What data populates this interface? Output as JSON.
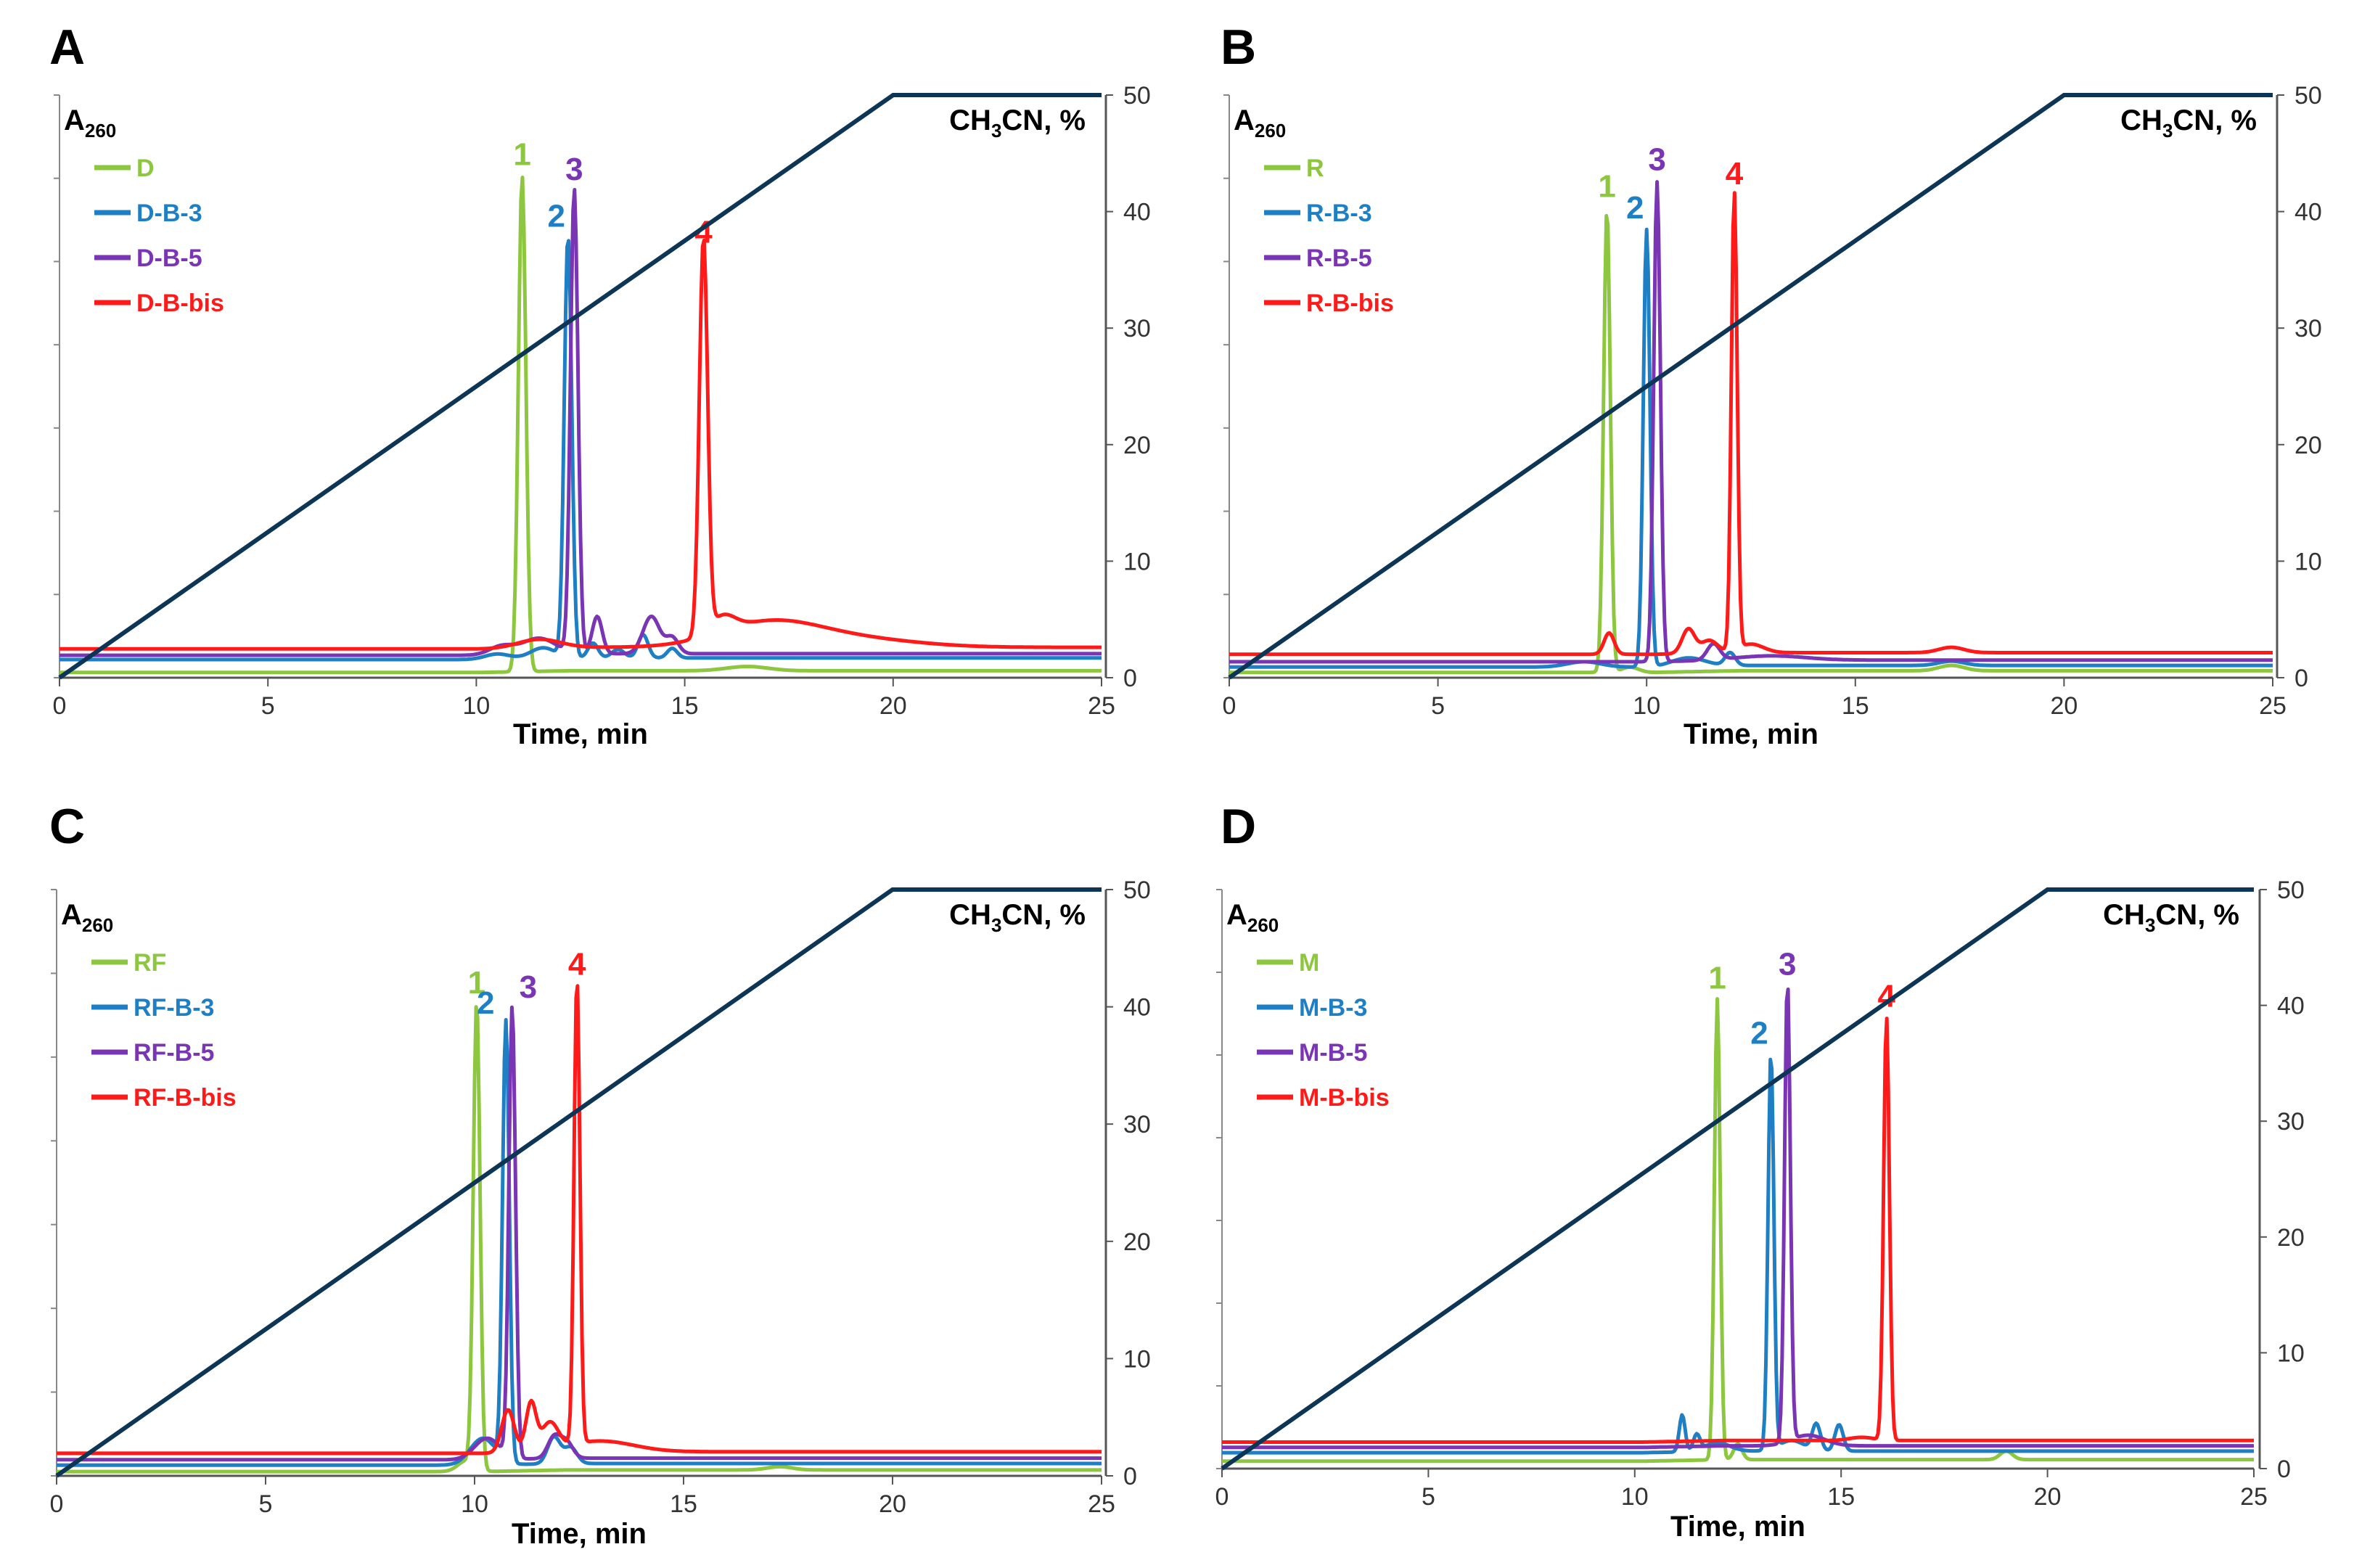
{
  "colors": {
    "green": "#8dc63f",
    "blue": "#1e7fc4",
    "purple": "#7a35b4",
    "red": "#ff1a1a",
    "gradient": "#0d3556"
  },
  "chart_data": [
    {
      "panel": "A",
      "type": "line",
      "xlabel": "Time, min",
      "ylabel_left": "A",
      "ylabel_left_sub": "260",
      "ylabel_right": "CH3CN, %",
      "xlim": [
        0,
        25
      ],
      "xticks": [
        "0",
        "5",
        "10",
        "15",
        "20",
        "25"
      ],
      "ylim_right": [
        0,
        50
      ],
      "yticks_right": [
        "0",
        "10",
        "20",
        "30",
        "40",
        "50"
      ],
      "gradient": {
        "x": [
          0,
          20,
          25
        ],
        "y": [
          0,
          50,
          50
        ]
      },
      "series": [
        {
          "name": "D",
          "color": "green",
          "baseline": 0.5,
          "peaks": [
            [
              11.1,
              46.5,
              0.09
            ],
            [
              16.5,
              0.4,
              0.5
            ]
          ],
          "peak_label": "1"
        },
        {
          "name": "D-B-3",
          "color": "blue",
          "baseline": 1.7,
          "peaks": [
            [
              12.2,
              39.5,
              0.09
            ],
            [
              10.5,
              0.5,
              0.3
            ],
            [
              11.6,
              1.0,
              0.3
            ],
            [
              12.8,
              1.4,
              0.12
            ],
            [
              13.4,
              0.8,
              0.15
            ],
            [
              14.0,
              2.2,
              0.12
            ],
            [
              14.7,
              0.9,
              0.12
            ]
          ],
          "peak_label": "2"
        },
        {
          "name": "D-B-5",
          "color": "purple",
          "baseline": 2.1,
          "peaks": [
            [
              12.35,
              43.5,
              0.09
            ],
            [
              10.6,
              0.8,
              0.3
            ],
            [
              11.5,
              1.5,
              0.4
            ],
            [
              12.9,
              3.5,
              0.12
            ],
            [
              14.2,
              3.5,
              0.2
            ],
            [
              14.7,
              1.5,
              0.15
            ]
          ],
          "peak_label": "3"
        },
        {
          "name": "D-B-bis",
          "color": "red",
          "baseline": 2.7,
          "peaks": [
            [
              15.45,
              37.0,
              0.1
            ],
            [
              11.5,
              0.8,
              0.5
            ],
            [
              15.9,
              1.5,
              0.3
            ],
            [
              17.0,
              2.2,
              1.2
            ],
            [
              19.0,
              0.8,
              1.5
            ]
          ],
          "peak_label": "4"
        }
      ]
    },
    {
      "panel": "B",
      "type": "line",
      "xlabel": "Time, min",
      "ylabel_left": "A",
      "ylabel_left_sub": "260",
      "ylabel_right": "CH3CN, %",
      "xlim": [
        0,
        25
      ],
      "xticks": [
        "0",
        "5",
        "10",
        "15",
        "20",
        "25"
      ],
      "ylim_right": [
        0,
        50
      ],
      "yticks_right": [
        "0",
        "10",
        "20",
        "30",
        "40",
        "50"
      ],
      "gradient": {
        "x": [
          0,
          20,
          25
        ],
        "y": [
          0,
          50,
          50
        ]
      },
      "series": [
        {
          "name": "R",
          "color": "green",
          "baseline": 0.5,
          "peaks": [
            [
              9.05,
              43.5,
              0.08
            ],
            [
              9.6,
              0.5,
              0.2
            ],
            [
              17.3,
              0.5,
              0.3
            ]
          ],
          "peak_label": "1"
        },
        {
          "name": "R-B-3",
          "color": "blue",
          "baseline": 1.0,
          "peaks": [
            [
              10.0,
              41.0,
              0.08
            ],
            [
              8.5,
              0.5,
              0.4
            ],
            [
              11.0,
              0.8,
              0.4
            ],
            [
              12.0,
              1.2,
              0.12
            ],
            [
              17.3,
              0.4,
              0.3
            ]
          ],
          "peak_label": "2"
        },
        {
          "name": "R-B-5",
          "color": "purple",
          "baseline": 1.5,
          "peaks": [
            [
              10.25,
              45.0,
              0.08
            ],
            [
              11.6,
              1.5,
              0.15
            ],
            [
              13.0,
              0.4,
              0.8
            ]
          ],
          "peak_label": "3"
        },
        {
          "name": "R-B-bis",
          "color": "red",
          "baseline": 2.2,
          "peaks": [
            [
              12.1,
              43.0,
              0.07
            ],
            [
              9.1,
              2.0,
              0.12
            ],
            [
              11.0,
              2.3,
              0.15
            ],
            [
              11.5,
              1.2,
              0.2
            ],
            [
              12.5,
              0.8,
              0.3
            ],
            [
              17.3,
              0.5,
              0.3
            ]
          ],
          "peak_label": "4"
        }
      ]
    },
    {
      "panel": "C",
      "type": "line",
      "xlabel": "Time, min",
      "ylabel_left": "A",
      "ylabel_left_sub": "260",
      "ylabel_right": "CH3CN, %",
      "xlim": [
        0,
        25
      ],
      "xticks": [
        "0",
        "5",
        "10",
        "15",
        "20",
        "25"
      ],
      "ylim_right": [
        0,
        50
      ],
      "yticks_right": [
        "0",
        "10",
        "20",
        "30",
        "40",
        "50"
      ],
      "gradient": {
        "x": [
          0,
          20,
          25
        ],
        "y": [
          0,
          50,
          50
        ]
      },
      "series": [
        {
          "name": "RF",
          "color": "green",
          "baseline": 0.4,
          "peaks": [
            [
              10.05,
              43.5,
              0.08
            ],
            [
              9.8,
              1.0,
              0.2
            ],
            [
              17.3,
              0.3,
              0.3
            ]
          ],
          "peak_label": "1"
        },
        {
          "name": "RF-B-3",
          "color": "blue",
          "baseline": 1.0,
          "peaks": [
            [
              10.75,
              41.0,
              0.08
            ],
            [
              10.2,
              2.5,
              0.3
            ],
            [
              11.9,
              2.5,
              0.15
            ],
            [
              12.3,
              1.5,
              0.15
            ]
          ],
          "peak_label": "2"
        },
        {
          "name": "RF-B-5",
          "color": "purple",
          "baseline": 1.5,
          "peaks": [
            [
              10.9,
              42.0,
              0.08
            ],
            [
              10.3,
              2.0,
              0.3
            ],
            [
              11.9,
              2.0,
              0.15
            ],
            [
              12.2,
              1.5,
              0.15
            ]
          ],
          "peak_label": "3"
        },
        {
          "name": "RF-B-bis",
          "color": "red",
          "baseline": 2.1,
          "peaks": [
            [
              12.45,
              43.5,
              0.07
            ],
            [
              10.8,
              4.0,
              0.15
            ],
            [
              11.35,
              4.5,
              0.12
            ],
            [
              11.8,
              2.5,
              0.2
            ],
            [
              13.0,
              1.0,
              0.8
            ]
          ],
          "peak_label": "4"
        }
      ]
    },
    {
      "panel": "D",
      "type": "line",
      "xlabel": "Time, min",
      "ylabel_left": "A",
      "ylabel_left_sub": "260",
      "ylabel_right": "CH3CN, %",
      "xlim": [
        0,
        25
      ],
      "xticks": [
        "0",
        "5",
        "10",
        "15",
        "20",
        "25"
      ],
      "ylim_right": [
        0,
        50
      ],
      "yticks_right": [
        "0",
        "10",
        "20",
        "30",
        "40",
        "50"
      ],
      "gradient": {
        "x": [
          0,
          20,
          25
        ],
        "y": [
          0,
          50,
          50
        ]
      },
      "series": [
        {
          "name": "M",
          "color": "green",
          "baseline": 0.7,
          "peaks": [
            [
              12.0,
              43.5,
              0.07
            ],
            [
              12.5,
              1.5,
              0.1
            ],
            [
              19.0,
              0.8,
              0.15
            ]
          ],
          "peak_label": "1"
        },
        {
          "name": "M-B-3",
          "color": "blue",
          "baseline": 1.5,
          "peaks": [
            [
              13.3,
              37.5,
              0.07
            ],
            [
              11.15,
              3.5,
              0.07
            ],
            [
              11.5,
              1.5,
              0.08
            ],
            [
              12.0,
              0.8,
              0.3
            ],
            [
              14.4,
              2.5,
              0.1
            ],
            [
              14.95,
              2.5,
              0.1
            ],
            [
              13.8,
              1.0,
              0.3
            ]
          ],
          "peak_label": "2"
        },
        {
          "name": "M-B-5",
          "color": "purple",
          "baseline": 2.0,
          "peaks": [
            [
              13.7,
              43.5,
              0.07
            ],
            [
              14.2,
              1.0,
              0.4
            ]
          ],
          "peak_label": "3"
        },
        {
          "name": "M-B-bis",
          "color": "red",
          "baseline": 2.5,
          "peaks": [
            [
              16.1,
              40.0,
              0.07
            ],
            [
              15.5,
              0.3,
              0.3
            ]
          ],
          "peak_label": "4"
        }
      ]
    }
  ]
}
